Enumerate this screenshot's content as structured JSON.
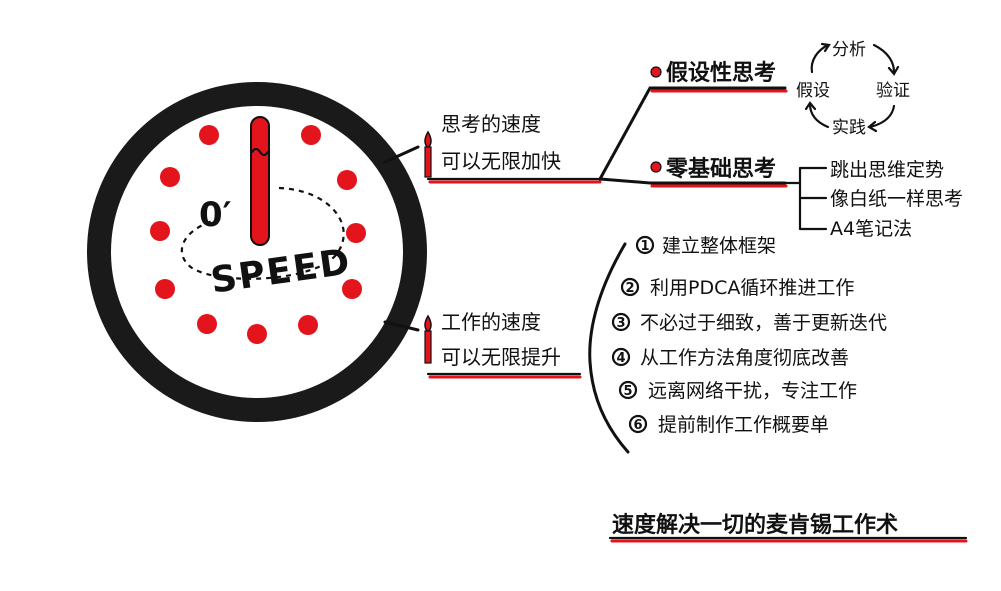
{
  "clock": {
    "zero_label": "0′",
    "speed_label": "SPEED"
  },
  "branch_thinking": {
    "line1": "思考的速度",
    "line2": "可以无限加快"
  },
  "branch_work": {
    "line1": "工作的速度",
    "line2": "可以无限提升"
  },
  "hypothesis": {
    "label": "假设性思考",
    "cycle": {
      "analyze": "分析",
      "hypothesize": "假设",
      "verify": "验证",
      "practice": "实践"
    }
  },
  "zero_based": {
    "label": "零基础思考",
    "items": [
      "跳出思维定势",
      "像白纸一样思考",
      "A4笔记法"
    ]
  },
  "work_steps": [
    {
      "num": "1",
      "text": "建立整体框架"
    },
    {
      "num": "2",
      "text": "利用PDCA循环推进工作"
    },
    {
      "num": "3",
      "text": "不必过于细致，善于更新迭代"
    },
    {
      "num": "4",
      "text": "从工作方法角度彻底改善"
    },
    {
      "num": "5",
      "text": "远离网络干扰，专注工作"
    },
    {
      "num": "6",
      "text": "提前制作工作概要单"
    }
  ],
  "footer_title": "速度解决一切的麦肯锡工作术",
  "colors": {
    "accent_red": "#e3141c",
    "ink": "#111111"
  }
}
